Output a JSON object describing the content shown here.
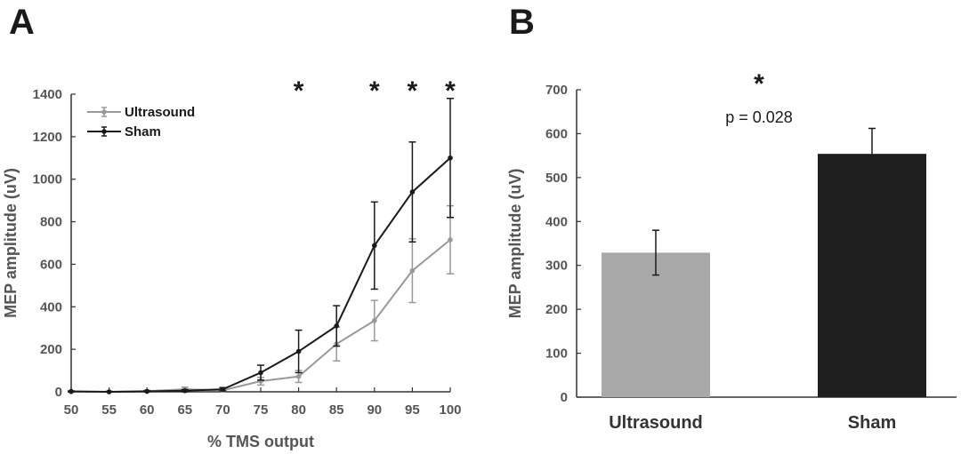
{
  "panels": {
    "a_label": "A",
    "b_label": "B"
  },
  "colors": {
    "ultrasound": "#999999",
    "sham": "#1a1a1a",
    "bar_ultrasound": "#a8a8a8",
    "bar_sham": "#1e1e1e",
    "axis": "#333333"
  },
  "chart_data": [
    {
      "type": "line",
      "xlabel": "% TMS output",
      "ylabel": "MEP amplitude (uV)",
      "x": [
        50,
        55,
        60,
        65,
        70,
        75,
        80,
        85,
        90,
        95,
        100
      ],
      "xlim": [
        50,
        100
      ],
      "ylim": [
        0,
        1400
      ],
      "xticks": [
        "50",
        "55",
        "60",
        "65",
        "70",
        "75",
        "80",
        "85",
        "90",
        "95",
        "100"
      ],
      "yticks": [
        "0",
        "200",
        "400",
        "600",
        "800",
        "1000",
        "1200",
        "1400"
      ],
      "series": [
        {
          "name": "Ultrasound",
          "values": [
            0,
            0,
            3,
            12,
            7,
            50,
            72,
            225,
            335,
            570,
            715
          ],
          "err": [
            2,
            2,
            4,
            10,
            5,
            18,
            28,
            80,
            95,
            150,
            160
          ]
        },
        {
          "name": "Sham",
          "values": [
            2,
            0,
            2,
            5,
            12,
            90,
            190,
            310,
            688,
            940,
            1100
          ],
          "err": [
            2,
            2,
            3,
            5,
            8,
            35,
            100,
            95,
            205,
            235,
            280
          ]
        }
      ],
      "significance": [
        {
          "x": 80,
          "label": "*"
        },
        {
          "x": 90,
          "label": "*"
        },
        {
          "x": 95,
          "label": "*"
        },
        {
          "x": 100,
          "label": "*"
        }
      ],
      "legend": "top-left",
      "grid": false
    },
    {
      "type": "bar",
      "ylabel": "MEP amplitude (uV)",
      "categories": [
        "Ultrasound",
        "Sham"
      ],
      "values": [
        329,
        554
      ],
      "err": [
        51,
        58
      ],
      "ylim": [
        0,
        700
      ],
      "yticks": [
        "0",
        "100",
        "200",
        "300",
        "400",
        "500",
        "600",
        "700"
      ],
      "significance": {
        "star": "*",
        "text": "p = 0.028"
      },
      "grid": false
    }
  ]
}
